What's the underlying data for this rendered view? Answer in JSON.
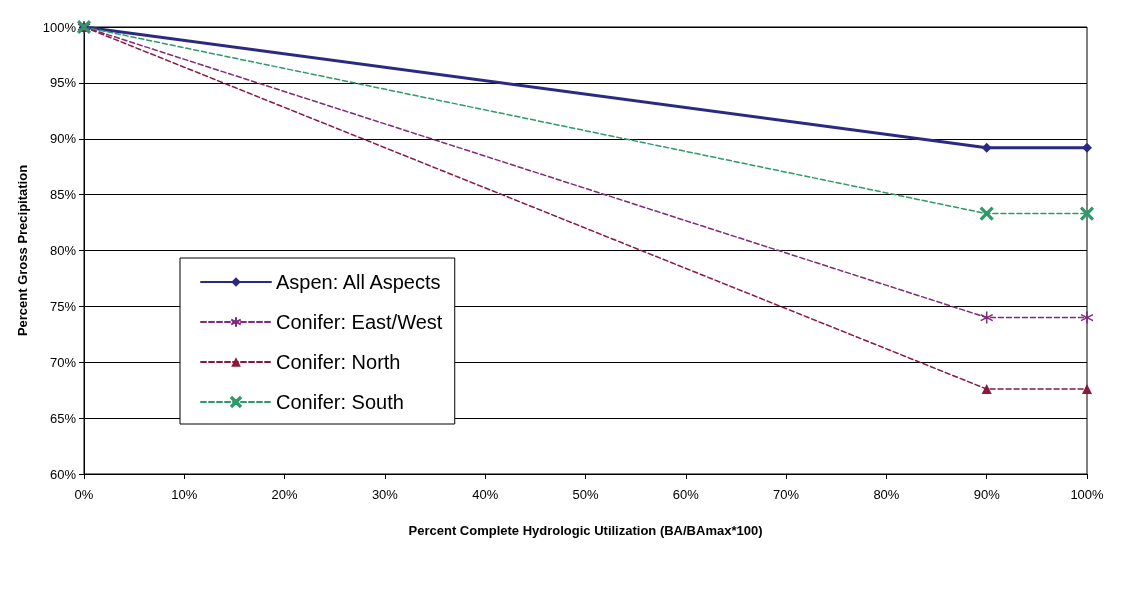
{
  "chart_data": {
    "type": "line",
    "xlabel": "Percent Complete Hydrologic Utilization (BA/BAmax*100)",
    "ylabel": "Percent Gross Precipitation",
    "xlim": [
      0,
      100
    ],
    "xticks": [
      {
        "value": 0,
        "label": "0%"
      },
      {
        "value": 10,
        "label": "10%"
      },
      {
        "value": 20,
        "label": "20%"
      },
      {
        "value": 30,
        "label": "30%"
      },
      {
        "value": 40,
        "label": "40%"
      },
      {
        "value": 50,
        "label": "50%"
      },
      {
        "value": 60,
        "label": "60%"
      },
      {
        "value": 70,
        "label": "70%"
      },
      {
        "value": 80,
        "label": "80%"
      },
      {
        "value": 90,
        "label": "90%"
      },
      {
        "value": 100,
        "label": "100%"
      }
    ],
    "ylim": [
      60,
      100
    ],
    "yticks": [
      {
        "value": 60,
        "label": "60%"
      },
      {
        "value": 65,
        "label": "65%"
      },
      {
        "value": 70,
        "label": "70%"
      },
      {
        "value": 75,
        "label": "75%"
      },
      {
        "value": 80,
        "label": "80%"
      },
      {
        "value": 85,
        "label": "85%"
      },
      {
        "value": 90,
        "label": "90%"
      },
      {
        "value": 95,
        "label": "95%"
      },
      {
        "value": 100,
        "label": "100%"
      }
    ],
    "x": [
      0,
      90,
      100
    ],
    "grid": "y",
    "legend": "bottom left",
    "series": [
      {
        "name": "Aspen: All Aspects",
        "color": "#2b2a83",
        "values": [
          100,
          89.2,
          89.2
        ],
        "marker": "diamond",
        "line_style": "solid"
      },
      {
        "name": "Conifer: East/West",
        "color": "#7f2a7a",
        "values": [
          100,
          74,
          74
        ],
        "marker": "star",
        "line_style": "dashed"
      },
      {
        "name": "Conifer: North",
        "color": "#8b1a3a",
        "values": [
          100,
          67.6,
          67.6
        ],
        "marker": "triangle",
        "line_style": "dashed"
      },
      {
        "name": "Conifer: South",
        "color": "#2e9a6a",
        "values": [
          100,
          83.3,
          83.3
        ],
        "marker": "cross",
        "line_style": "dashed"
      }
    ]
  }
}
